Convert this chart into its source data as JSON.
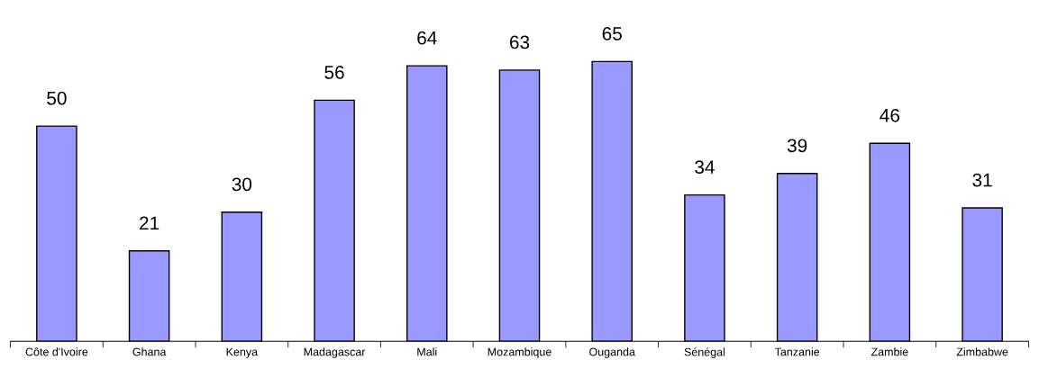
{
  "chart_data": {
    "type": "bar",
    "categories": [
      "Côte d'Ivoire",
      "Ghana",
      "Kenya",
      "Madagascar",
      "Mali",
      "Mozambique",
      "Ouganda",
      "Sénégal",
      "Tanzanie",
      "Zambie",
      "Zimbabwe"
    ],
    "values": [
      50,
      21,
      30,
      56,
      64,
      63,
      65,
      34,
      39,
      46,
      31
    ],
    "color": "#9999ff",
    "data_labels": true,
    "tick_labels": "x",
    "grid": false,
    "legend": false
  }
}
